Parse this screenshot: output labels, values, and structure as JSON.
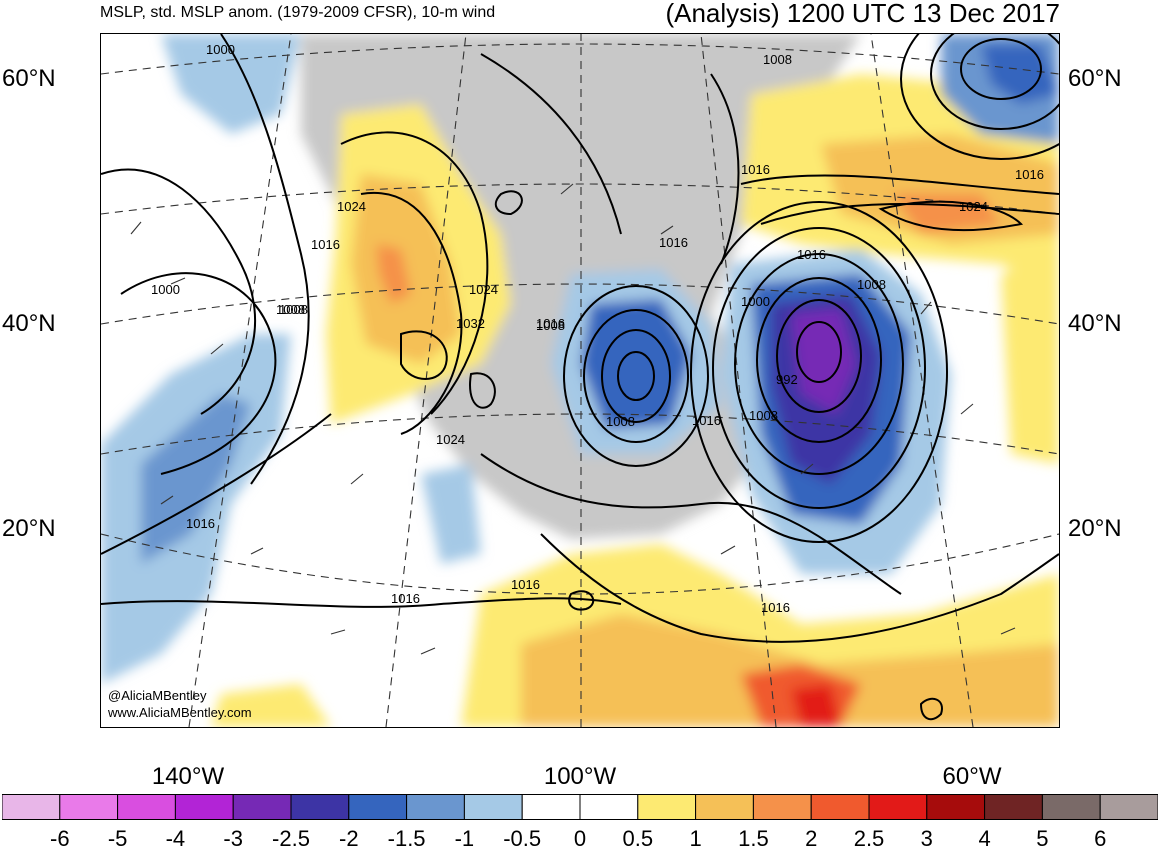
{
  "header": {
    "left_title": "MSLP, std. MSLP anom. (1979-2009 CFSR), 10-m wind",
    "right_title": "(Analysis) 1200 UTC 13 Dec 2017"
  },
  "lat_labels": {
    "l60": "60°N",
    "l40": "40°N",
    "l20": "20°N"
  },
  "lon_labels": {
    "w140": "140°W",
    "w100": "100°W",
    "w60": "60°W"
  },
  "credit": {
    "handle": "@AliciaMBentley",
    "site": "www.AliciaMBentley.com"
  },
  "isobar_labels": [
    {
      "id": "a",
      "text": "1000"
    },
    {
      "id": "b",
      "text": "1008"
    },
    {
      "id": "c",
      "text": "1016"
    },
    {
      "id": "d",
      "text": "1024"
    },
    {
      "id": "e",
      "text": "1016"
    },
    {
      "id": "f",
      "text": "1000"
    },
    {
      "id": "g",
      "text": "1008"
    },
    {
      "id": "h",
      "text": "1024"
    },
    {
      "id": "i",
      "text": "1032"
    },
    {
      "id": "j",
      "text": "1016"
    },
    {
      "id": "k",
      "text": "1016"
    },
    {
      "id": "l",
      "text": "1008"
    },
    {
      "id": "m",
      "text": "1024"
    },
    {
      "id": "n",
      "text": "1016"
    },
    {
      "id": "o",
      "text": "1008"
    },
    {
      "id": "p",
      "text": "1016"
    },
    {
      "id": "q",
      "text": "1000"
    },
    {
      "id": "r",
      "text": "992"
    },
    {
      "id": "s",
      "text": "1008"
    },
    {
      "id": "t",
      "text": "1008"
    },
    {
      "id": "u",
      "text": "1016"
    },
    {
      "id": "v",
      "text": "1024"
    },
    {
      "id": "w",
      "text": "1016"
    },
    {
      "id": "x",
      "text": "1008"
    },
    {
      "id": "y",
      "text": "1016"
    },
    {
      "id": "z",
      "text": "1016"
    },
    {
      "id": "aa",
      "text": "1016"
    }
  ],
  "colorbar": {
    "colors": [
      "#e8b6e8",
      "#e97ae9",
      "#d94ee0",
      "#b224d6",
      "#7629b5",
      "#3d34a5",
      "#3565be",
      "#6a96cf",
      "#a5c9e6",
      "#ffffff",
      "#ffffff",
      "#fdea72",
      "#f5c057",
      "#f5914a",
      "#f05a2e",
      "#e21a18",
      "#a60c0c",
      "#6f2424",
      "#7a6a68",
      "#a89c9c"
    ],
    "labels": [
      "-6",
      "-5",
      "-4",
      "-3",
      "-2.5",
      "-2",
      "-1.5",
      "-1",
      "-0.5",
      "0",
      "0.5",
      "1",
      "1.5",
      "2",
      "2.5",
      "3",
      "4",
      "5",
      "6"
    ]
  }
}
